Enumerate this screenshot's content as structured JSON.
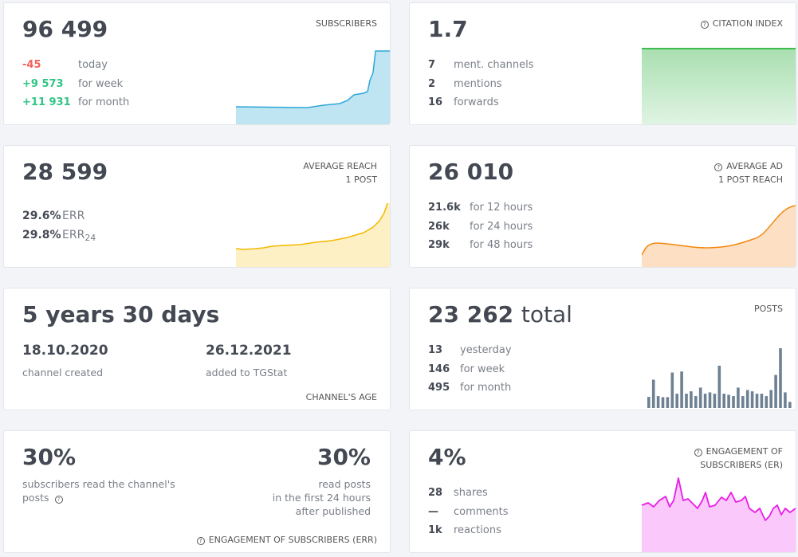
{
  "subscribers": {
    "value": "96 499",
    "label": "SUBSCRIBERS",
    "rows": [
      {
        "v": "-45",
        "t": "today"
      },
      {
        "v": "+9 573",
        "t": "for week"
      },
      {
        "v": "+11 931",
        "t": "for month"
      }
    ]
  },
  "citation": {
    "value": "1.7",
    "label": "CITATION INDEX",
    "rows": [
      {
        "v": "7",
        "t": "ment. channels"
      },
      {
        "v": "2",
        "t": "mentions"
      },
      {
        "v": "16",
        "t": "forwards"
      }
    ]
  },
  "reach": {
    "value": "28 599",
    "label1": "AVERAGE REACH",
    "label2": "1 POST",
    "rows": [
      {
        "v": "29.6%",
        "t": "ERR"
      },
      {
        "v": "29.8%",
        "t": "ERR",
        "sub": "24"
      }
    ]
  },
  "ad": {
    "value": "26 010",
    "label1": "AVERAGE AD",
    "label2": "1 POST REACH",
    "rows": [
      {
        "v": "21.6k",
        "t": "for 12 hours"
      },
      {
        "v": "26k",
        "t": "for 24 hours"
      },
      {
        "v": "29k",
        "t": "for 48 hours"
      }
    ]
  },
  "age": {
    "value": "5 years 30 days",
    "created_date": "18.10.2020",
    "created_label": "channel created",
    "added_date": "26.12.2021",
    "added_label": "added to TGStat",
    "label": "CHANNEL'S AGE"
  },
  "posts": {
    "value": "23 262",
    "value_suffix": "total",
    "label": "POSTS",
    "rows": [
      {
        "v": "13",
        "t": "yesterday"
      },
      {
        "v": "146",
        "t": "for week"
      },
      {
        "v": "495",
        "t": "for month"
      }
    ],
    "bars": [
      42,
      107,
      45,
      41,
      41,
      134,
      54,
      138,
      54,
      63,
      45,
      77,
      54,
      59,
      54,
      160,
      54,
      50,
      45,
      77,
      45,
      68,
      63,
      54,
      54,
      45,
      68,
      125,
      226,
      59,
      23
    ]
  },
  "err": {
    "value_left": "30%",
    "text_left1": "subscribers read the channel's",
    "text_left2": "posts",
    "value_right": "30%",
    "text_right1": "read posts",
    "text_right2": "in the first 24 hours",
    "text_right3": "after published",
    "label": "ENGAGEMENT OF SUBSCRIBERS (ERR)"
  },
  "er": {
    "value": "4%",
    "label1": "ENGAGEMENT OF",
    "label2": "SUBSCRIBERS (ER)",
    "rows": [
      {
        "v": "28",
        "t": "shares"
      },
      {
        "v": "—",
        "t": "comments"
      },
      {
        "v": "1k",
        "t": "reactions"
      }
    ]
  },
  "colors": {
    "subscribers": "#2fa8d8",
    "citation": "#3cbd4e",
    "reach": "#f5b800",
    "ad": "#f5870f",
    "posts": "#6e8193",
    "er": "#e81ee8"
  }
}
